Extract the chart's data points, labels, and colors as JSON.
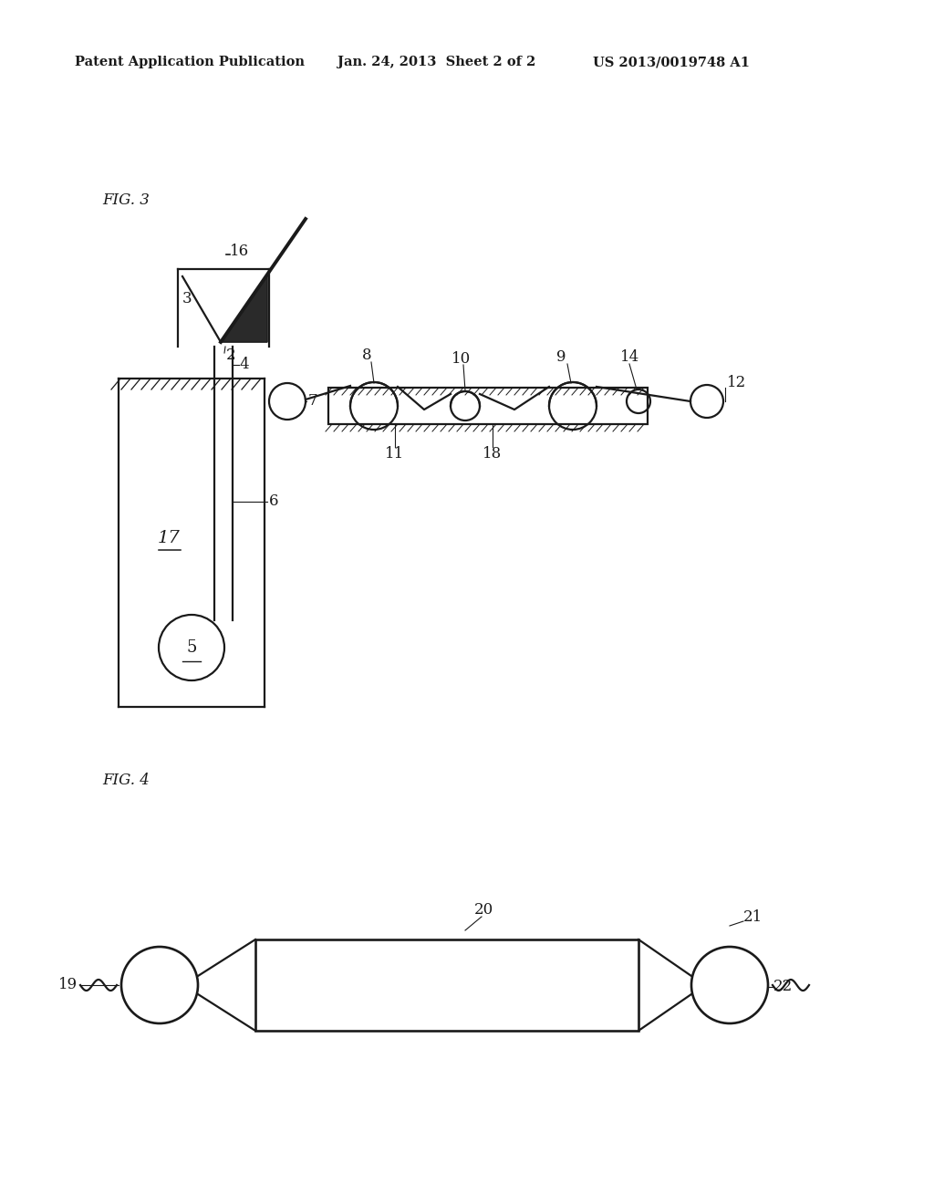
{
  "bg_color": "#ffffff",
  "line_color": "#1a1a1a",
  "header_left": "Patent Application Publication",
  "header_mid": "Jan. 24, 2013  Sheet 2 of 2",
  "header_right": "US 2013/0019748 A1",
  "fig3_label": "FIG. 3",
  "fig4_label": "FIG. 4"
}
